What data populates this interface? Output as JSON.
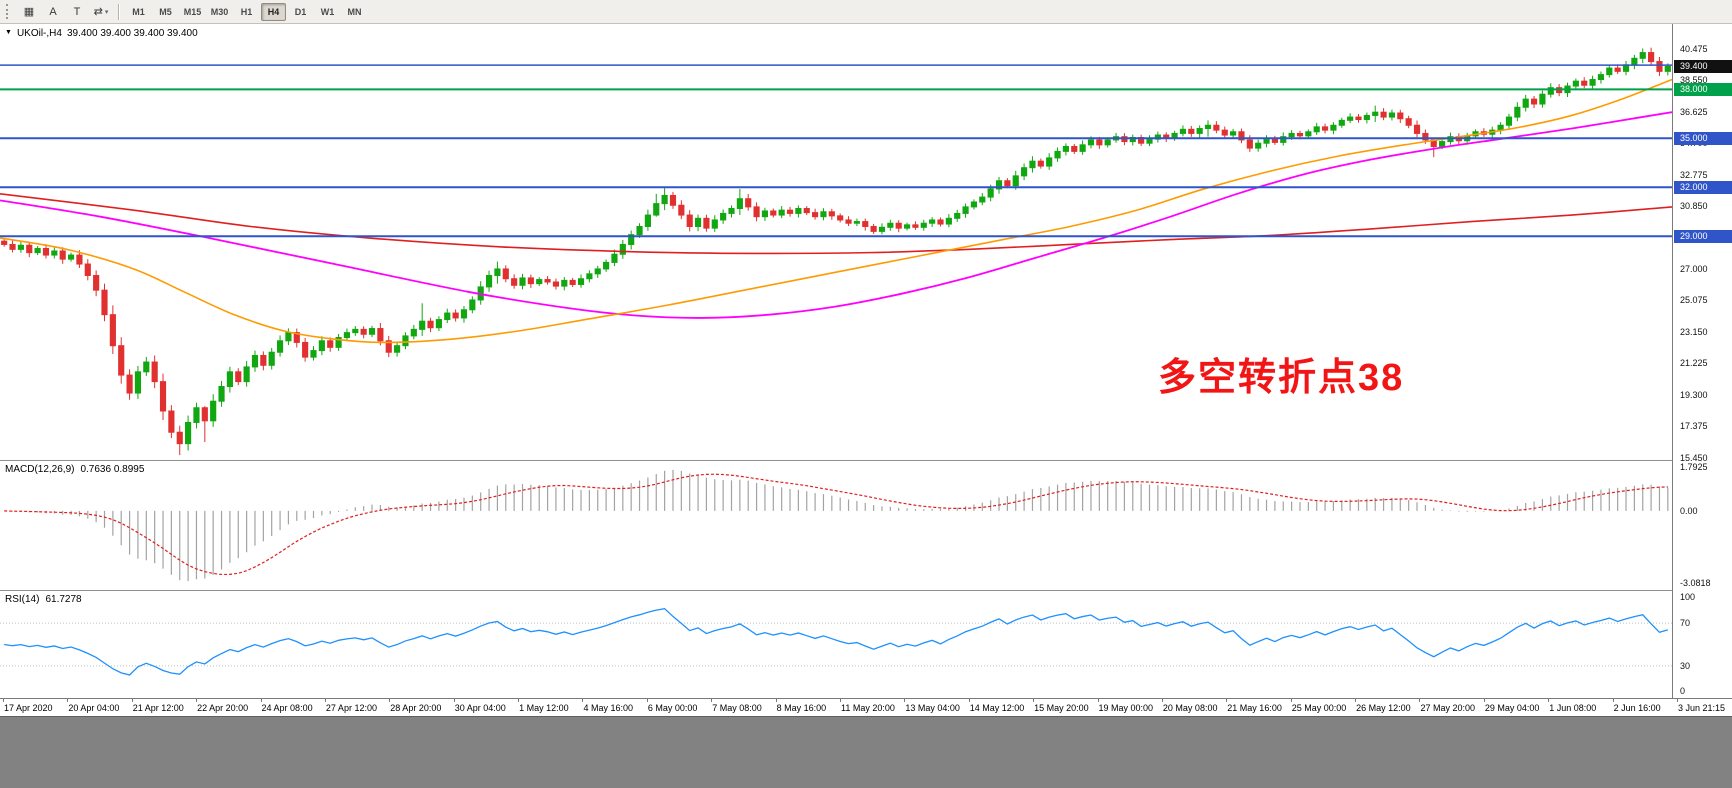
{
  "toolbar": {
    "icons": [
      {
        "name": "new-chart-icon",
        "glyph": "▦"
      },
      {
        "name": "cursor-tool-icon",
        "glyph": "A"
      },
      {
        "name": "text-tool-icon",
        "glyph": "T"
      },
      {
        "name": "auto-scroll-icon",
        "glyph": "⇄",
        "caret": "▾"
      }
    ],
    "timeframes": {
      "items": [
        "M1",
        "M5",
        "M15",
        "M30",
        "H1",
        "H4",
        "D1",
        "W1",
        "MN"
      ],
      "active": "H4"
    }
  },
  "colors": {
    "candle_up": "#10a710",
    "candle_down": "#e03030",
    "macd_histogram": "#a3a3a3",
    "macd_signal": "#e02020",
    "rsi_line": "#1e90ff",
    "rsi_levels": "#c0c0c0",
    "blue_line": "#2f55c9",
    "green_line": "#00a14b",
    "axis_text": "#000000"
  },
  "chart_data": {
    "type": "candlestick",
    "symbol": "UKOil-",
    "timeframe": "H4",
    "symbol_line": "UKOil-,H4",
    "ohlc_line": "39.400 39.400 39.400 39.400",
    "marker": "▼",
    "annotation": {
      "text": "多空转折点38",
      "color": "#f21515"
    },
    "price_axis": {
      "max": 42.0,
      "min": 15.3,
      "tick_labels": [
        "40.475",
        "38.550",
        "36.625",
        "34.700",
        "32.775",
        "30.850",
        "28.925",
        "27.000",
        "25.075",
        "23.150",
        "21.225",
        "19.300",
        "17.375",
        "15.450"
      ],
      "badges": [
        {
          "text": "39.400",
          "price": 39.4,
          "bg": "#111111"
        },
        {
          "text": "38.000",
          "price": 38.0,
          "bg": "#00a14b"
        },
        {
          "text": "35.000",
          "price": 35.0,
          "bg": "#2f55c9"
        },
        {
          "text": "32.000",
          "price": 32.0,
          "bg": "#2f55c9"
        },
        {
          "text": "29.000",
          "price": 29.0,
          "bg": "#2f55c9"
        }
      ]
    },
    "hlines": [
      {
        "price": 39.48,
        "color": "#2f55c9",
        "width": 1.5
      },
      {
        "price": 38.0,
        "color": "#00a14b",
        "width": 2
      },
      {
        "price": 35.0,
        "color": "#2f55c9",
        "width": 2
      },
      {
        "price": 32.0,
        "color": "#2f55c9",
        "width": 2
      },
      {
        "price": 29.0,
        "color": "#2f55c9",
        "width": 2
      }
    ],
    "first_open": 28.7,
    "closes": [
      28.5,
      28.2,
      28.45,
      28.0,
      28.25,
      27.85,
      28.1,
      27.6,
      27.85,
      27.3,
      26.6,
      25.7,
      24.2,
      22.3,
      20.5,
      19.4,
      20.7,
      21.3,
      20.1,
      18.3,
      17.0,
      16.3,
      17.6,
      18.5,
      17.7,
      18.9,
      19.8,
      20.7,
      20.1,
      21.0,
      21.7,
      21.1,
      21.9,
      22.6,
      23.1,
      22.5,
      21.6,
      22.0,
      22.6,
      22.2,
      22.8,
      23.1,
      23.3,
      23.0,
      23.35,
      22.6,
      21.9,
      22.3,
      22.9,
      23.3,
      23.8,
      23.4,
      23.9,
      24.3,
      24.0,
      24.5,
      25.1,
      25.9,
      26.6,
      27.0,
      26.4,
      26.0,
      26.45,
      26.1,
      26.35,
      26.2,
      25.95,
      26.3,
      26.05,
      26.4,
      26.7,
      27.0,
      27.4,
      27.9,
      28.5,
      29.1,
      29.6,
      30.3,
      31.0,
      31.5,
      30.9,
      30.3,
      29.6,
      30.1,
      29.5,
      30.0,
      30.4,
      30.7,
      31.3,
      30.8,
      30.2,
      30.55,
      30.3,
      30.6,
      30.4,
      30.7,
      30.45,
      30.2,
      30.5,
      30.25,
      30.0,
      29.8,
      29.9,
      29.6,
      29.3,
      29.55,
      29.8,
      29.5,
      29.7,
      29.55,
      29.8,
      30.0,
      29.75,
      30.1,
      30.4,
      30.8,
      31.1,
      31.4,
      31.9,
      32.4,
      32.1,
      32.7,
      33.2,
      33.6,
      33.3,
      33.8,
      34.2,
      34.5,
      34.2,
      34.6,
      34.9,
      34.6,
      34.9,
      35.1,
      34.8,
      35.05,
      34.7,
      34.95,
      35.2,
      35.0,
      35.3,
      35.55,
      35.3,
      35.6,
      35.8,
      35.5,
      35.2,
      35.4,
      34.9,
      34.4,
      34.7,
      35.0,
      34.75,
      35.1,
      35.3,
      35.15,
      35.4,
      35.7,
      35.5,
      35.8,
      36.1,
      36.3,
      36.15,
      36.4,
      36.6,
      36.3,
      36.55,
      36.2,
      35.8,
      35.3,
      34.9,
      34.5,
      34.8,
      35.1,
      34.85,
      35.15,
      35.4,
      35.25,
      35.5,
      35.8,
      36.3,
      36.9,
      37.4,
      37.1,
      37.7,
      38.1,
      37.8,
      38.2,
      38.5,
      38.25,
      38.6,
      38.9,
      39.3,
      39.1,
      39.5,
      39.9,
      40.25,
      39.7,
      39.1,
      39.4
    ],
    "wick_overrides": {
      "21": [
        17.4,
        15.6
      ],
      "24": [
        18.6,
        16.4
      ],
      "50": [
        24.9,
        22.9
      ],
      "59": [
        27.45,
        26.1
      ],
      "78": [
        31.6,
        30.2
      ],
      "79": [
        31.95,
        30.6
      ],
      "88": [
        31.9,
        30.3
      ],
      "123": [
        33.9,
        32.9
      ],
      "144": [
        36.1,
        35.1
      ],
      "164": [
        37.0,
        36.0
      ],
      "171": [
        34.9,
        33.85
      ],
      "196": [
        40.5,
        39.6
      ]
    },
    "ma_lines": [
      {
        "name": "slow-ma-red",
        "color": "#e02020",
        "width": 1.6,
        "points": [
          [
            0,
            31.6
          ],
          [
            0.08,
            30.6
          ],
          [
            0.15,
            29.6
          ],
          [
            0.22,
            28.9
          ],
          [
            0.3,
            28.35
          ],
          [
            0.38,
            28.05
          ],
          [
            0.45,
            27.95
          ],
          [
            0.52,
            28.0
          ],
          [
            0.58,
            28.2
          ],
          [
            0.64,
            28.5
          ],
          [
            0.7,
            28.8
          ],
          [
            0.76,
            29.05
          ],
          [
            0.82,
            29.45
          ],
          [
            0.88,
            29.9
          ],
          [
            0.94,
            30.3
          ],
          [
            1,
            30.8
          ]
        ]
      },
      {
        "name": "mid-ma-magenta",
        "color": "#ff00ff",
        "width": 1.8,
        "points": [
          [
            0,
            31.2
          ],
          [
            0.06,
            30.2
          ],
          [
            0.12,
            29.0
          ],
          [
            0.2,
            27.3
          ],
          [
            0.28,
            25.6
          ],
          [
            0.34,
            24.6
          ],
          [
            0.38,
            24.15
          ],
          [
            0.42,
            24.0
          ],
          [
            0.46,
            24.2
          ],
          [
            0.5,
            24.7
          ],
          [
            0.54,
            25.5
          ],
          [
            0.58,
            26.5
          ],
          [
            0.62,
            27.7
          ],
          [
            0.66,
            28.9
          ],
          [
            0.7,
            30.2
          ],
          [
            0.74,
            31.6
          ],
          [
            0.78,
            32.8
          ],
          [
            0.82,
            33.7
          ],
          [
            0.86,
            34.4
          ],
          [
            0.9,
            35.0
          ],
          [
            0.94,
            35.6
          ],
          [
            0.97,
            36.1
          ],
          [
            1,
            36.6
          ]
        ]
      },
      {
        "name": "fast-ma-orange",
        "color": "#ff9a00",
        "width": 1.6,
        "points": [
          [
            0,
            28.9
          ],
          [
            0.04,
            28.2
          ],
          [
            0.08,
            27.0
          ],
          [
            0.11,
            25.6
          ],
          [
            0.14,
            24.2
          ],
          [
            0.17,
            23.2
          ],
          [
            0.2,
            22.7
          ],
          [
            0.23,
            22.5
          ],
          [
            0.27,
            22.7
          ],
          [
            0.31,
            23.2
          ],
          [
            0.35,
            23.9
          ],
          [
            0.4,
            24.8
          ],
          [
            0.45,
            25.8
          ],
          [
            0.5,
            26.8
          ],
          [
            0.55,
            27.8
          ],
          [
            0.6,
            28.8
          ],
          [
            0.64,
            29.6
          ],
          [
            0.68,
            30.6
          ],
          [
            0.72,
            31.9
          ],
          [
            0.76,
            33.0
          ],
          [
            0.8,
            33.9
          ],
          [
            0.84,
            34.6
          ],
          [
            0.88,
            35.2
          ],
          [
            0.91,
            35.7
          ],
          [
            0.94,
            36.4
          ],
          [
            0.97,
            37.4
          ],
          [
            1,
            38.6
          ]
        ]
      }
    ],
    "macd": {
      "label": "MACD(12,26,9)",
      "values_text": "0.7636 0.8995",
      "fast": 12,
      "slow": 26,
      "signal": 9,
      "axis_labels": [
        "1.7925",
        "0.00",
        "-3.0818"
      ]
    },
    "rsi": {
      "label": "RSI(14)",
      "value_text": "61.7278",
      "period": 14,
      "levels": [
        70,
        30
      ],
      "axis_labels": [
        "100",
        "70",
        "30",
        "0"
      ]
    },
    "time_labels": [
      "17 Apr 2020",
      "20 Apr 04:00",
      "21 Apr 12:00",
      "22 Apr 20:00",
      "24 Apr 08:00",
      "27 Apr 12:00",
      "28 Apr 20:00",
      "30 Apr 04:00",
      "1 May 12:00",
      "4 May 16:00",
      "6 May 00:00",
      "7 May 08:00",
      "8 May 16:00",
      "11 May 20:00",
      "13 May 04:00",
      "14 May 12:00",
      "15 May 20:00",
      "19 May 00:00",
      "20 May 08:00",
      "21 May 16:00",
      "25 May 00:00",
      "26 May 12:00",
      "27 May 20:00",
      "29 May 04:00",
      "1 Jun 08:00",
      "2 Jun 16:00",
      "3 Jun 21:15"
    ]
  }
}
